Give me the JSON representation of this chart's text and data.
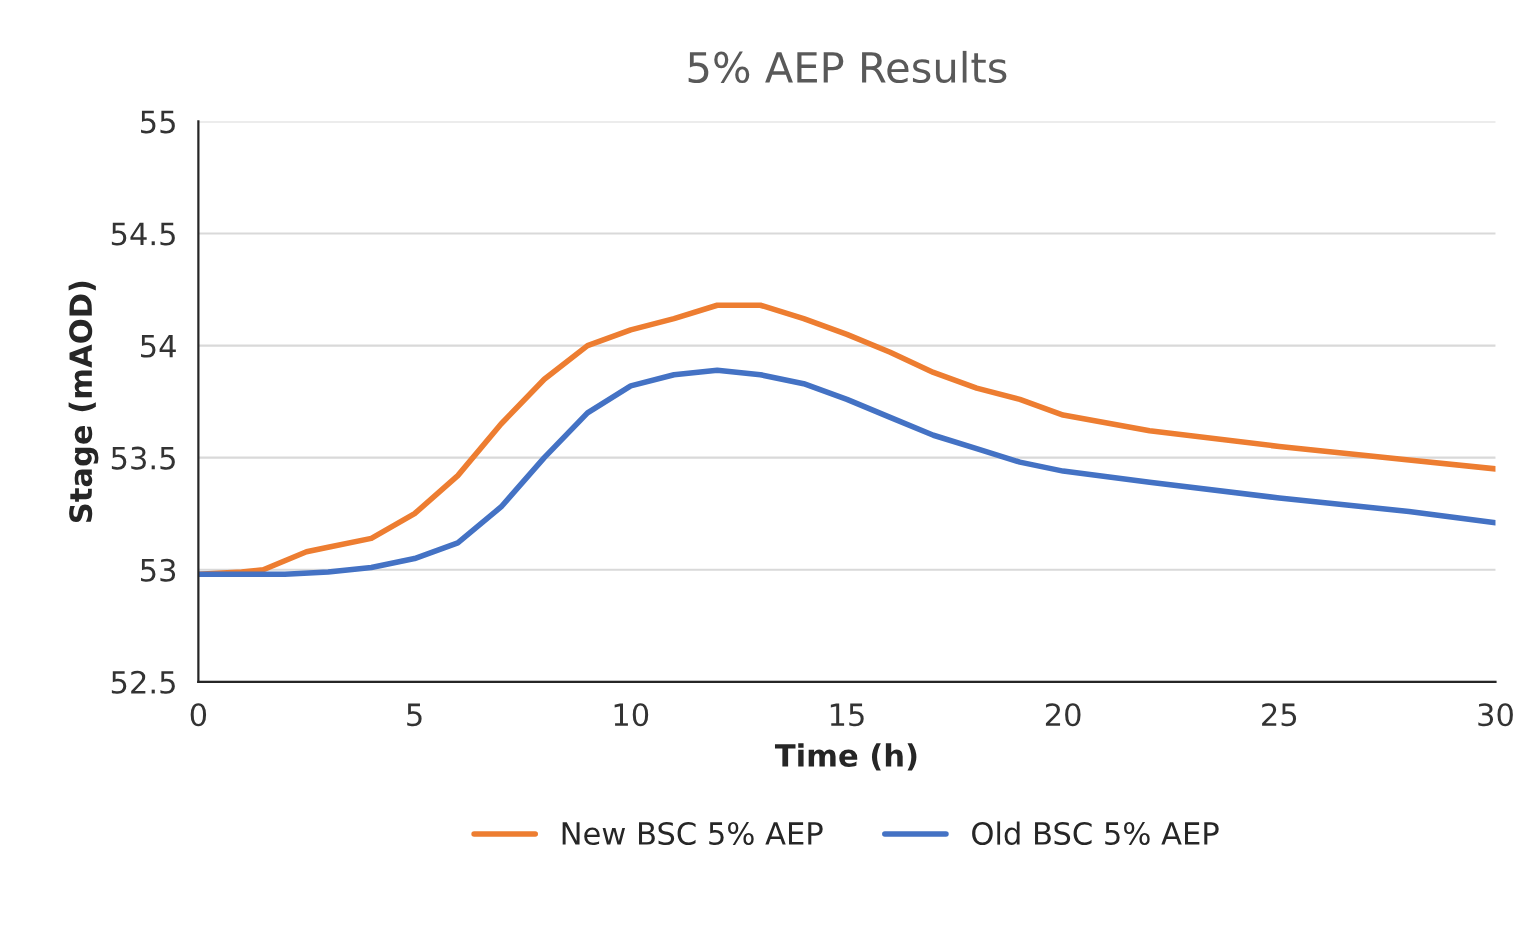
{
  "chart_data": {
    "type": "line",
    "title": "5% AEP Results",
    "xlabel": "Time (h)",
    "ylabel": "Stage (mAOD)",
    "xlim": [
      0,
      30
    ],
    "xticks": [
      0,
      5,
      10,
      15,
      20,
      25,
      30
    ],
    "ylim": [
      52.5,
      55
    ],
    "yticks": [
      52.5,
      53,
      53.5,
      54,
      54.5,
      55
    ],
    "grid": "y",
    "legend": "bottom",
    "marker": "none",
    "line_style": "solid",
    "series": [
      {
        "name": "New BSC 5% AEP",
        "color": "#ed7d31",
        "x": [
          0,
          1,
          1.5,
          2,
          2.5,
          3,
          4,
          5,
          6,
          7,
          8,
          9,
          10,
          11,
          12,
          13,
          14,
          15,
          16,
          17,
          18,
          19,
          20,
          22,
          25,
          28,
          30
        ],
        "values": [
          52.98,
          52.99,
          53.0,
          53.04,
          53.08,
          53.1,
          53.14,
          53.25,
          53.42,
          53.65,
          53.85,
          54.0,
          54.07,
          54.12,
          54.18,
          54.18,
          54.12,
          54.05,
          53.97,
          53.88,
          53.81,
          53.76,
          53.69,
          53.62,
          53.55,
          53.49,
          53.45
        ]
      },
      {
        "name": "Old BSC 5% AEP",
        "color": "#4472c4",
        "x": [
          0,
          2,
          3,
          4,
          5,
          6,
          7,
          8,
          9,
          10,
          11,
          12,
          13,
          14,
          15,
          16,
          17,
          18,
          19,
          20,
          22,
          25,
          28,
          30
        ],
        "values": [
          52.98,
          52.98,
          52.99,
          53.01,
          53.05,
          53.12,
          53.28,
          53.5,
          53.7,
          53.82,
          53.87,
          53.89,
          53.87,
          53.83,
          53.76,
          53.68,
          53.6,
          53.54,
          53.48,
          53.44,
          53.39,
          53.32,
          53.26,
          53.21
        ]
      }
    ]
  }
}
